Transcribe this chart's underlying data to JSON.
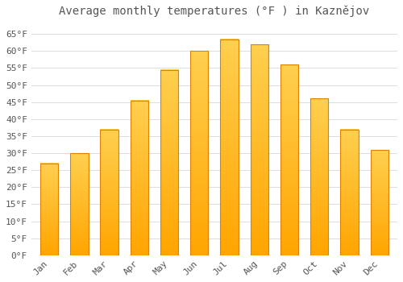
{
  "title": "Average monthly temperatures (°F ) in Kaznějov",
  "months": [
    "Jan",
    "Feb",
    "Mar",
    "Apr",
    "May",
    "Jun",
    "Jul",
    "Aug",
    "Sep",
    "Oct",
    "Nov",
    "Dec"
  ],
  "values": [
    27.0,
    30.0,
    37.0,
    45.5,
    54.5,
    60.0,
    63.5,
    62.0,
    56.0,
    46.0,
    37.0,
    31.0
  ],
  "bar_color_top": "#FFD050",
  "bar_color_bottom": "#FFA500",
  "bar_edge_color": "#E08000",
  "background_color": "#FFFFFF",
  "grid_color": "#DDDDDD",
  "text_color": "#555555",
  "ylim": [
    0,
    68
  ],
  "yticks": [
    0,
    5,
    10,
    15,
    20,
    25,
    30,
    35,
    40,
    45,
    50,
    55,
    60,
    65
  ],
  "title_fontsize": 10,
  "tick_fontsize": 8,
  "bar_width": 0.6
}
